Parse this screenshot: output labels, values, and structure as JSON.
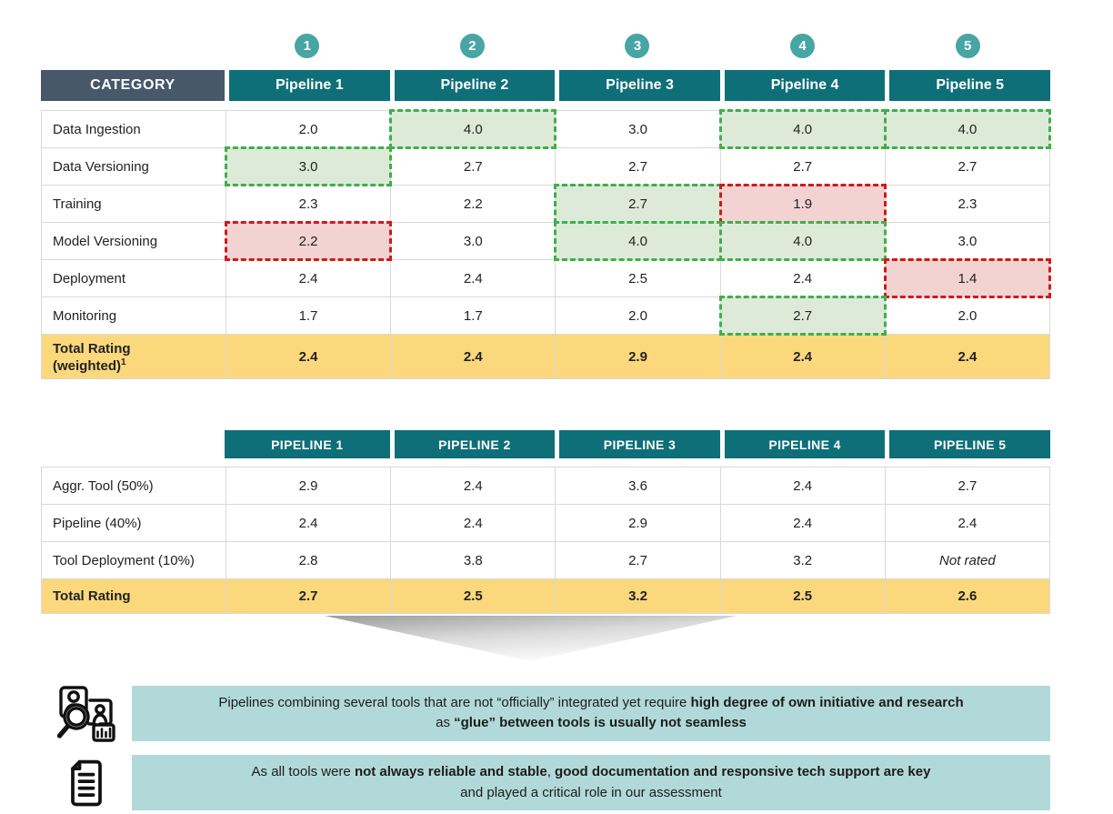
{
  "colors": {
    "teal_header": "#0e6f78",
    "teal_circle": "#47a5a3",
    "slate_header": "#47586a",
    "total_row_yellow": "#fcd87c",
    "highlight_green_fill": "#ddead7",
    "highlight_green_border": "#3eb049",
    "highlight_red_fill": "#f3d2d2",
    "highlight_red_border": "#d01a1a",
    "callout_bg": "#b2d9d9"
  },
  "table1": {
    "circle_labels": [
      "1",
      "2",
      "3",
      "4",
      "5"
    ],
    "header": [
      "CATEGORY",
      "Pipeline 1",
      "Pipeline 2",
      "Pipeline 3",
      "Pipeline 4",
      "Pipeline 5"
    ],
    "rows": [
      {
        "label": "Data Ingestion",
        "values": [
          "2.0",
          "4.0",
          "3.0",
          "4.0",
          "4.0"
        ],
        "highlights": [
          null,
          "green",
          null,
          "green",
          "green"
        ]
      },
      {
        "label": "Data Versioning",
        "values": [
          "3.0",
          "2.7",
          "2.7",
          "2.7",
          "2.7"
        ],
        "highlights": [
          "green",
          null,
          null,
          null,
          null
        ]
      },
      {
        "label": "Training",
        "values": [
          "2.3",
          "2.2",
          "2.7",
          "1.9",
          "2.3"
        ],
        "highlights": [
          null,
          null,
          "green",
          "red",
          null
        ]
      },
      {
        "label": "Model Versioning",
        "values": [
          "2.2",
          "3.0",
          "4.0",
          "4.0",
          "3.0"
        ],
        "highlights": [
          "red",
          null,
          "green",
          "green",
          null
        ]
      },
      {
        "label": "Deployment",
        "values": [
          "2.4",
          "2.4",
          "2.5",
          "2.4",
          "1.4"
        ],
        "highlights": [
          null,
          null,
          null,
          null,
          "red"
        ]
      },
      {
        "label": "Monitoring",
        "values": [
          "1.7",
          "1.7",
          "2.0",
          "2.7",
          "2.0"
        ],
        "highlights": [
          null,
          null,
          null,
          "green",
          null
        ]
      }
    ],
    "total_row": {
      "label_line1": "Total Rating",
      "label_line2": "(weighted)",
      "footnote_marker": "1",
      "values": [
        "2.4",
        "2.4",
        "2.9",
        "2.4",
        "2.4"
      ]
    }
  },
  "table2": {
    "header": [
      "PIPELINE 1",
      "PIPELINE 2",
      "PIPELINE 3",
      "PIPELINE 4",
      "PIPELINE 5"
    ],
    "rows": [
      {
        "label": "Aggr. Tool (50%)",
        "values": [
          "2.9",
          "2.4",
          "3.6",
          "2.4",
          "2.7"
        ],
        "italic": []
      },
      {
        "label": "Pipeline (40%)",
        "values": [
          "2.4",
          "2.4",
          "2.9",
          "2.4",
          "2.4"
        ],
        "italic": []
      },
      {
        "label": "Tool Deployment (10%)",
        "values": [
          "2.8",
          "3.8",
          "2.7",
          "3.2",
          "Not rated"
        ],
        "italic": [
          4
        ]
      }
    ],
    "total_row": {
      "label": "Total Rating",
      "values": [
        "2.7",
        "2.5",
        "3.2",
        "2.5",
        "2.6"
      ]
    }
  },
  "callouts": [
    {
      "icon": "people-search-chart-icon",
      "segments": [
        {
          "text": "Pipelines combining several tools that are not “officially” integrated yet require ",
          "bold": false
        },
        {
          "text": "high degree of own initiative and research",
          "bold": true
        },
        {
          "br": true
        },
        {
          "text": "as ",
          "bold": false
        },
        {
          "text": "“glue” between tools is usually not seamless",
          "bold": true
        }
      ]
    },
    {
      "icon": "document-icon",
      "segments": [
        {
          "text": "As all tools were ",
          "bold": false
        },
        {
          "text": "not always reliable and stable",
          "bold": true
        },
        {
          "text": ", ",
          "bold": false
        },
        {
          "text": "good documentation and responsive tech support are key",
          "bold": true
        },
        {
          "br": true
        },
        {
          "text": "and played a critical role in our assessment",
          "bold": false
        }
      ]
    }
  ]
}
